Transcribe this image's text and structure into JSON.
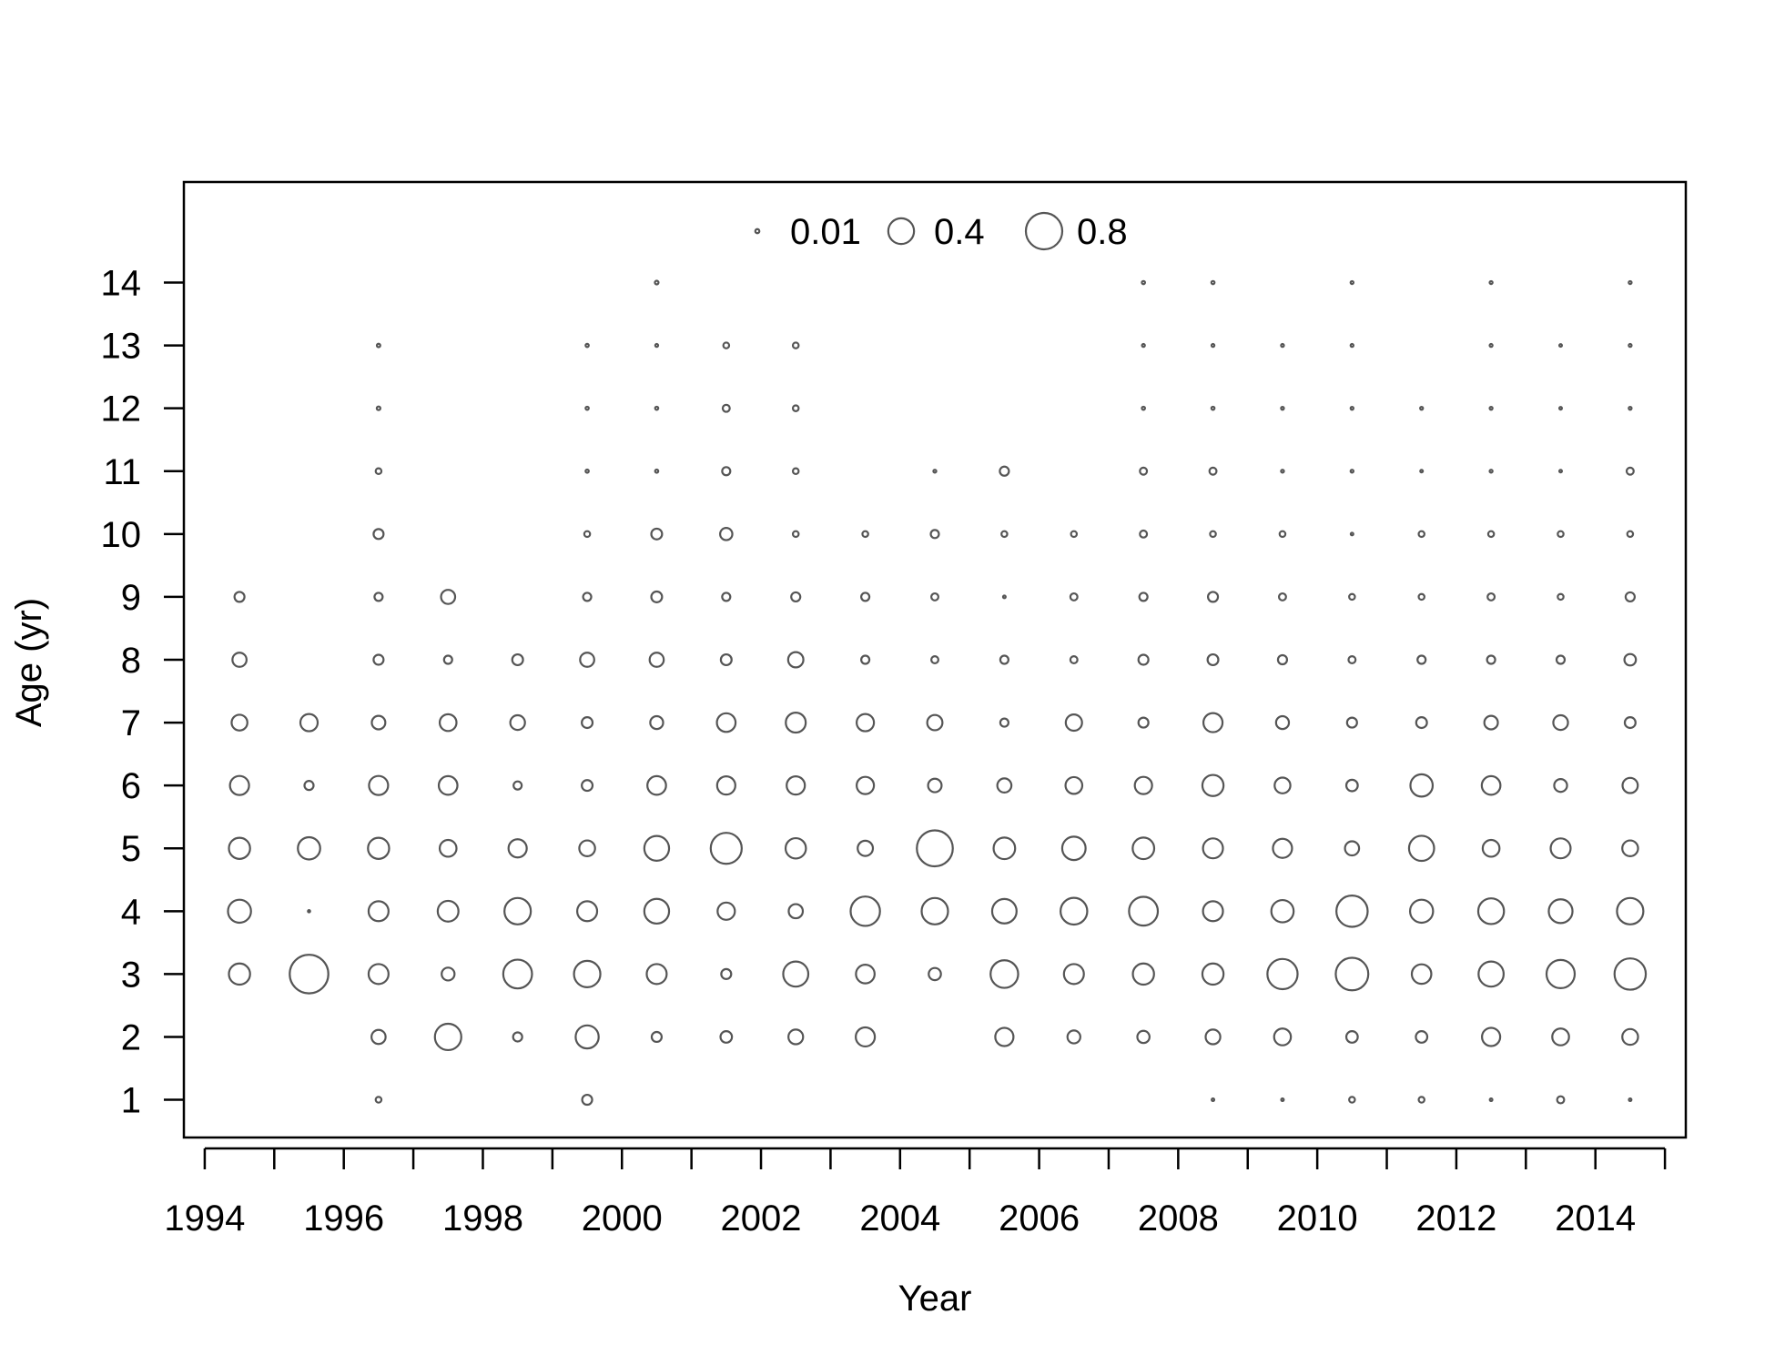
{
  "chart_data": {
    "type": "scatter",
    "subtype": "bubble",
    "title": "",
    "xlabel": "Year",
    "ylabel": "Age (yr)",
    "xlim": [
      1993.7,
      2015.3
    ],
    "ylim": [
      0.4,
      15.6
    ],
    "x_ticks": [
      1994,
      1995,
      1996,
      1997,
      1998,
      1999,
      2000,
      2001,
      2002,
      2003,
      2004,
      2005,
      2006,
      2007,
      2008,
      2009,
      2010,
      2011,
      2012,
      2013,
      2014,
      2015
    ],
    "x_tick_labels": [
      "1994",
      "1996",
      "1998",
      "2000",
      "2002",
      "2004",
      "2006",
      "2008",
      "2010",
      "2012",
      "2014"
    ],
    "x_tick_label_values": [
      1994,
      1996,
      1998,
      2000,
      2002,
      2004,
      2006,
      2008,
      2010,
      2012,
      2014
    ],
    "y_tick_labels": [
      "1",
      "2",
      "3",
      "4",
      "5",
      "6",
      "7",
      "8",
      "9",
      "10",
      "11",
      "12",
      "13",
      "14"
    ],
    "y_tick_values": [
      1,
      2,
      3,
      4,
      5,
      6,
      7,
      8,
      9,
      10,
      11,
      12,
      13,
      14
    ],
    "grid": false,
    "legend_position": "top-center",
    "legend": [
      {
        "label": "0.01",
        "value": 0.01
      },
      {
        "label": "0.4",
        "value": 0.4
      },
      {
        "label": "0.8",
        "value": 0.8
      }
    ],
    "bubble_scale": "radius proportional to sqrt(value)",
    "colors": {
      "stroke": "#555555",
      "fill": "#ffffff",
      "axis": "#000000"
    },
    "years": [
      1994.5,
      1995.5,
      1996.5,
      1997.5,
      1998.5,
      1999.5,
      2000.5,
      2001.5,
      2002.5,
      2003.5,
      2004.5,
      2005.5,
      2006.5,
      2007.5,
      2008.5,
      2009.5,
      2010.5,
      2011.5,
      2012.5,
      2013.5,
      2014.5
    ],
    "columns": [
      {
        "year": 1994.5,
        "ages": [
          3,
          4,
          5,
          6,
          7,
          8,
          9
        ],
        "values": [
          0.27,
          0.32,
          0.27,
          0.22,
          0.15,
          0.12,
          0.06
        ]
      },
      {
        "year": 1995.5,
        "ages": [
          3,
          4,
          5,
          6,
          7
        ],
        "values": [
          0.9,
          0.001,
          0.3,
          0.05,
          0.18
        ]
      },
      {
        "year": 1996.5,
        "ages": [
          1,
          2,
          3,
          4,
          5,
          6,
          7,
          8,
          9,
          10,
          11,
          12,
          13
        ],
        "values": [
          0.02,
          0.12,
          0.24,
          0.24,
          0.27,
          0.22,
          0.11,
          0.06,
          0.04,
          0.06,
          0.02,
          0.008,
          0.007
        ]
      },
      {
        "year": 1997.5,
        "ages": [
          2,
          3,
          4,
          5,
          6,
          7,
          8,
          9
        ],
        "values": [
          0.42,
          0.1,
          0.26,
          0.17,
          0.21,
          0.17,
          0.04,
          0.12
        ]
      },
      {
        "year": 1998.5,
        "ages": [
          2,
          3,
          4,
          5,
          6,
          7,
          8
        ],
        "values": [
          0.05,
          0.5,
          0.42,
          0.2,
          0.04,
          0.13,
          0.07
        ]
      },
      {
        "year": 1999.5,
        "ages": [
          1,
          2,
          3,
          4,
          5,
          6,
          7,
          8,
          9,
          10,
          11,
          12,
          13
        ],
        "values": [
          0.06,
          0.32,
          0.42,
          0.24,
          0.15,
          0.07,
          0.07,
          0.12,
          0.04,
          0.02,
          0.006,
          0.006,
          0.006
        ]
      },
      {
        "year": 2000.5,
        "ages": [
          2,
          3,
          4,
          5,
          6,
          7,
          8,
          9,
          10,
          11,
          12,
          13,
          14
        ],
        "values": [
          0.06,
          0.24,
          0.37,
          0.37,
          0.21,
          0.1,
          0.12,
          0.07,
          0.07,
          0.006,
          0.006,
          0.005,
          0.008
        ]
      },
      {
        "year": 2001.5,
        "ages": [
          2,
          3,
          4,
          5,
          6,
          7,
          8,
          9,
          10,
          11,
          12,
          13
        ],
        "values": [
          0.08,
          0.06,
          0.18,
          0.58,
          0.2,
          0.21,
          0.07,
          0.04,
          0.09,
          0.04,
          0.03,
          0.02
        ]
      },
      {
        "year": 2002.5,
        "ages": [
          2,
          3,
          4,
          5,
          6,
          7,
          8,
          9,
          10,
          11,
          12,
          13
        ],
        "values": [
          0.13,
          0.38,
          0.12,
          0.25,
          0.2,
          0.24,
          0.14,
          0.05,
          0.02,
          0.02,
          0.02,
          0.02
        ]
      },
      {
        "year": 2003.5,
        "ages": [
          2,
          3,
          4,
          5,
          6,
          7,
          8,
          9,
          10
        ],
        "values": [
          0.22,
          0.21,
          0.52,
          0.14,
          0.18,
          0.18,
          0.04,
          0.04,
          0.02
        ]
      },
      {
        "year": 2004.5,
        "ages": [
          3,
          4,
          5,
          6,
          7,
          8,
          9,
          10,
          11
        ],
        "values": [
          0.09,
          0.42,
          0.78,
          0.11,
          0.14,
          0.03,
          0.03,
          0.04,
          0.005
        ]
      },
      {
        "year": 2005.5,
        "ages": [
          2,
          3,
          4,
          5,
          6,
          7,
          8,
          9,
          10,
          11
        ],
        "values": [
          0.2,
          0.46,
          0.36,
          0.28,
          0.12,
          0.04,
          0.04,
          0.004,
          0.02,
          0.05
        ]
      },
      {
        "year": 2006.5,
        "ages": [
          2,
          3,
          4,
          5,
          6,
          7,
          8,
          9,
          10
        ],
        "values": [
          0.1,
          0.24,
          0.43,
          0.33,
          0.17,
          0.16,
          0.03,
          0.03,
          0.02
        ]
      },
      {
        "year": 2007.5,
        "ages": [
          2,
          3,
          4,
          5,
          6,
          7,
          8,
          9,
          10,
          11,
          12,
          13,
          14
        ],
        "values": [
          0.09,
          0.27,
          0.5,
          0.28,
          0.18,
          0.06,
          0.06,
          0.04,
          0.03,
          0.03,
          0.006,
          0.005,
          0.006
        ]
      },
      {
        "year": 2008.5,
        "ages": [
          1,
          2,
          3,
          4,
          5,
          6,
          7,
          8,
          9,
          10,
          11,
          12,
          13,
          14
        ],
        "values": [
          0.004,
          0.13,
          0.27,
          0.24,
          0.24,
          0.27,
          0.22,
          0.07,
          0.06,
          0.02,
          0.03,
          0.006,
          0.005,
          0.006
        ]
      },
      {
        "year": 2009.5,
        "ages": [
          1,
          2,
          3,
          4,
          5,
          6,
          7,
          8,
          9,
          10,
          11,
          12,
          13
        ],
        "values": [
          0.004,
          0.17,
          0.55,
          0.3,
          0.22,
          0.15,
          0.1,
          0.05,
          0.03,
          0.02,
          0.005,
          0.005,
          0.005
        ]
      },
      {
        "year": 2010.5,
        "ages": [
          1,
          2,
          3,
          4,
          5,
          6,
          7,
          8,
          9,
          10,
          11,
          12,
          13,
          14
        ],
        "values": [
          0.02,
          0.08,
          0.64,
          0.59,
          0.12,
          0.08,
          0.06,
          0.03,
          0.02,
          0.004,
          0.005,
          0.005,
          0.005,
          0.005
        ]
      },
      {
        "year": 2011.5,
        "ages": [
          1,
          2,
          3,
          4,
          5,
          6,
          7,
          8,
          9,
          10,
          11,
          12
        ],
        "values": [
          0.02,
          0.08,
          0.23,
          0.32,
          0.38,
          0.3,
          0.07,
          0.04,
          0.02,
          0.02,
          0.004,
          0.005
        ]
      },
      {
        "year": 2012.5,
        "ages": [
          1,
          2,
          3,
          4,
          5,
          6,
          7,
          8,
          9,
          10,
          11,
          12,
          13,
          14
        ],
        "values": [
          0.004,
          0.2,
          0.38,
          0.4,
          0.17,
          0.21,
          0.11,
          0.04,
          0.03,
          0.02,
          0.005,
          0.005,
          0.005,
          0.005
        ]
      },
      {
        "year": 2013.5,
        "ages": [
          1,
          2,
          3,
          4,
          5,
          6,
          7,
          8,
          9,
          10,
          11,
          12,
          13
        ],
        "values": [
          0.03,
          0.17,
          0.48,
          0.34,
          0.24,
          0.1,
          0.13,
          0.04,
          0.02,
          0.02,
          0.004,
          0.004,
          0.004
        ]
      },
      {
        "year": 2014.5,
        "ages": [
          1,
          2,
          3,
          4,
          5,
          6,
          7,
          8,
          9,
          10,
          11,
          12,
          13,
          14
        ],
        "values": [
          0.004,
          0.15,
          0.59,
          0.42,
          0.15,
          0.14,
          0.07,
          0.08,
          0.05,
          0.02,
          0.03,
          0.005,
          0.005,
          0.005
        ]
      }
    ]
  }
}
